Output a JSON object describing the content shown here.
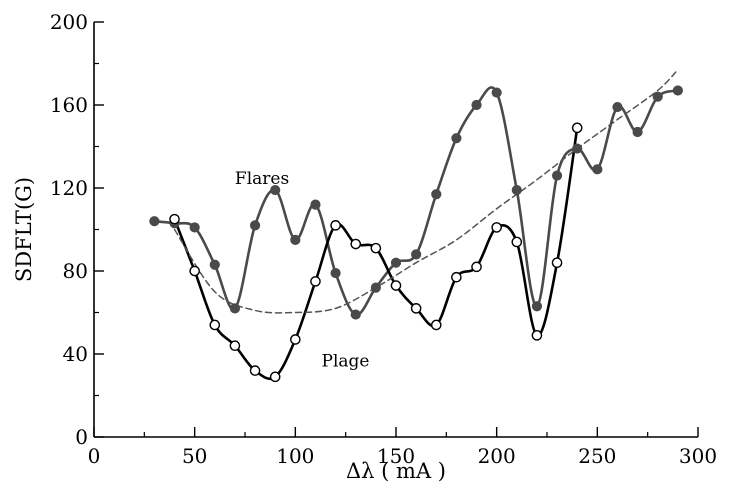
{
  "chart_data": {
    "type": "line",
    "title": "",
    "xlabel": "Δλ ( mA )",
    "ylabel": "SDFLT(G)",
    "xlim": [
      0,
      300
    ],
    "ylim": [
      0,
      200
    ],
    "x_ticks": [
      0,
      50,
      100,
      150,
      200,
      250,
      300
    ],
    "y_ticks": [
      0,
      40,
      80,
      120,
      160,
      200
    ],
    "grid": false,
    "legend": "none",
    "annotations": [
      {
        "text": "Flares",
        "x": 70,
        "y": 122
      },
      {
        "text": "Plage",
        "x": 113,
        "y": 34
      }
    ],
    "series": [
      {
        "key": "flares",
        "color": "#4a4a4a",
        "marker": "filled-circle",
        "style": "solid",
        "x": [
          30,
          40,
          50,
          60,
          70,
          80,
          90,
          100,
          110,
          120,
          130,
          140,
          150,
          160,
          170,
          180,
          190,
          200,
          210,
          220,
          230,
          240,
          250,
          260,
          270,
          280,
          290
        ],
        "y": [
          104,
          103,
          101,
          83,
          62,
          102,
          119,
          95,
          112,
          79,
          59,
          72,
          84,
          88,
          117,
          144,
          160,
          166,
          119,
          63,
          126,
          139,
          129,
          159,
          147,
          164,
          167
        ]
      },
      {
        "key": "plage",
        "color": "#000000",
        "marker": "open-circle",
        "style": "solid",
        "x": [
          40,
          50,
          60,
          70,
          80,
          90,
          100,
          110,
          120,
          130,
          140,
          150,
          160,
          170,
          180,
          190,
          200,
          210,
          220,
          230,
          240
        ],
        "y": [
          105,
          80,
          54,
          44,
          32,
          29,
          47,
          75,
          102,
          93,
          91,
          73,
          62,
          54,
          77,
          82,
          101,
          94,
          49,
          84,
          149
        ]
      },
      {
        "key": "fit",
        "color": "#555555",
        "marker": "none",
        "style": "dashed",
        "x": [
          40,
          60,
          80,
          100,
          120,
          140,
          160,
          180,
          200,
          220,
          240,
          260,
          280,
          290
        ],
        "y": [
          100,
          70,
          61,
          60,
          62,
          72,
          84,
          95,
          110,
          124,
          139,
          153,
          167,
          177
        ]
      }
    ]
  }
}
